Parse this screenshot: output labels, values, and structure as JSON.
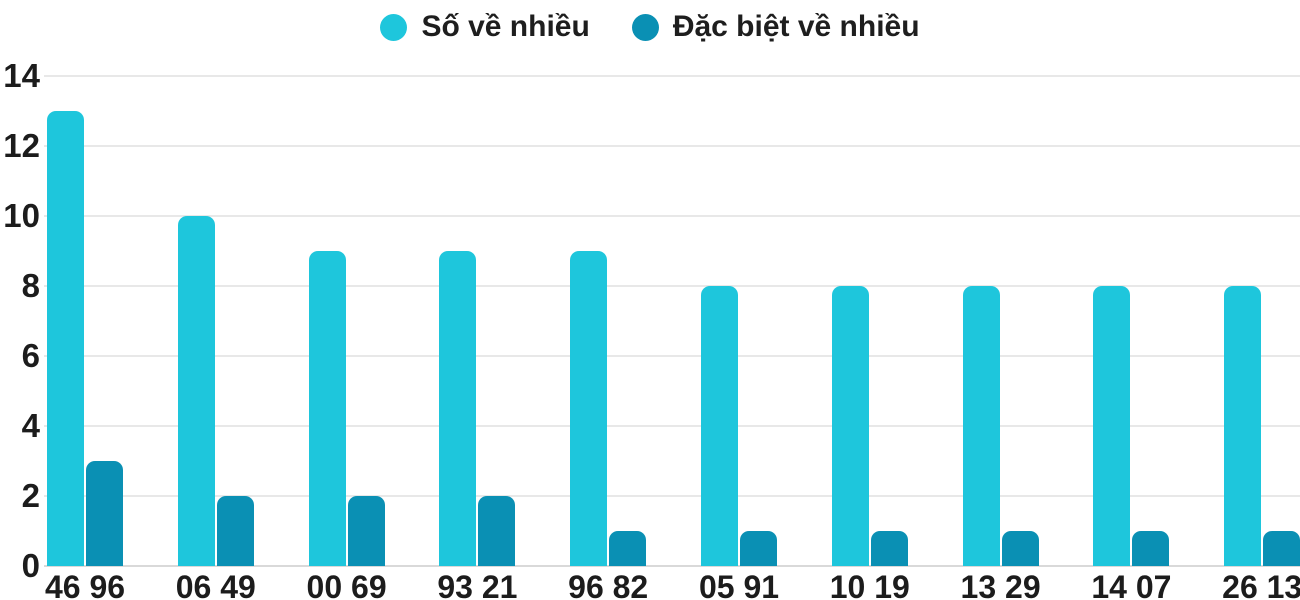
{
  "chart_data": {
    "type": "bar",
    "title": "",
    "xlabel": "",
    "ylabel": "",
    "categories": [
      "46 96",
      "06 49",
      "00 69",
      "93 21",
      "96 82",
      "05 91",
      "10 19",
      "13 29",
      "14 07",
      "26 13"
    ],
    "series": [
      {
        "name": "Số về nhiều",
        "color": "#1EC6DC",
        "values": [
          13,
          10,
          9,
          9,
          9,
          8,
          8,
          8,
          8,
          8
        ]
      },
      {
        "name": "Đặc biệt về nhiều",
        "color": "#0A90B4",
        "values": [
          3,
          2,
          2,
          2,
          1,
          1,
          1,
          1,
          1,
          1
        ]
      }
    ],
    "ylim": [
      0,
      14
    ],
    "yticks": [
      0,
      2,
      4,
      6,
      8,
      10,
      12,
      14
    ],
    "grid": "horizontal",
    "legend_position": "top-center",
    "colors": {
      "text": "#1c1c1c",
      "gridline": "#e8e8e8",
      "baseline": "#d9d9d9",
      "background": "#ffffff"
    }
  }
}
